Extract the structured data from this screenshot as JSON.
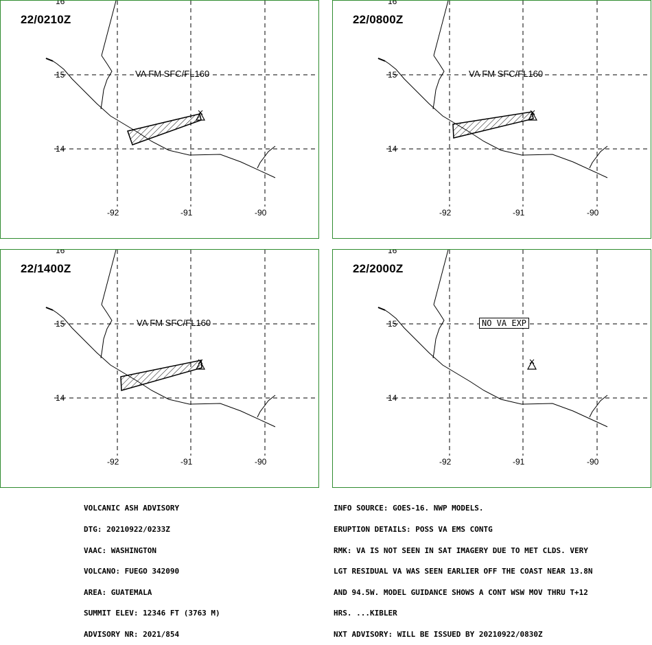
{
  "panels": [
    {
      "time": "22/0210Z",
      "label": "VA FM SFC/FL160",
      "label_style": "plain",
      "has_ash": true,
      "ash": [
        [
          185,
          190
        ],
        [
          290,
          165
        ],
        [
          292,
          174
        ],
        [
          192,
          210
        ]
      ]
    },
    {
      "time": "22/0800Z",
      "label": "VA FM SFC/FL160",
      "label_style": "plain",
      "has_ash": true,
      "ash": [
        [
          175,
          180
        ],
        [
          290,
          162
        ],
        [
          292,
          172
        ],
        [
          176,
          200
        ]
      ]
    },
    {
      "time": "22/1400Z",
      "label": "VA FM SFC/FL160",
      "label_style": "plain",
      "has_ash": true,
      "ash": [
        [
          175,
          185
        ],
        [
          292,
          161
        ],
        [
          293,
          172
        ],
        [
          176,
          205
        ]
      ]
    },
    {
      "time": "22/2000Z",
      "label": "NO VA EXP",
      "label_style": "boxed",
      "has_ash": false,
      "ash": []
    }
  ],
  "axes": {
    "lat_labels": [
      "16",
      "15",
      "14"
    ],
    "lon_labels": [
      "-92",
      "-91",
      "-90"
    ]
  },
  "advisory_left": [
    "VOLCANIC ASH ADVISORY",
    "DTG: 20210922/0233Z",
    "VAAC: WASHINGTON",
    "VOLCANO: FUEGO 342090",
    "AREA: GUATEMALA",
    "SUMMIT ELEV: 12346 FT (3763 M)",
    "ADVISORY NR: 2021/854"
  ],
  "advisory_right": [
    "INFO SOURCE: GOES-16. NWP MODELS.",
    "ERUPTION DETAILS: POSS VA EMS CONTG",
    "RMK: VA IS NOT SEEN IN SAT IMAGERY DUE TO MET CLDS. VERY",
    "LGT RESIDUAL VA WAS SEEN EARLIER OFF THE COAST NEAR 13.8N",
    "AND 94.5W. MODEL GUIDANCE SHOWS A CONT WSW MOV THRU T+12",
    "HRS. ...KIBLER",
    "NXT ADVISORY: WILL BE ISSUED BY 20210922/0830Z"
  ]
}
